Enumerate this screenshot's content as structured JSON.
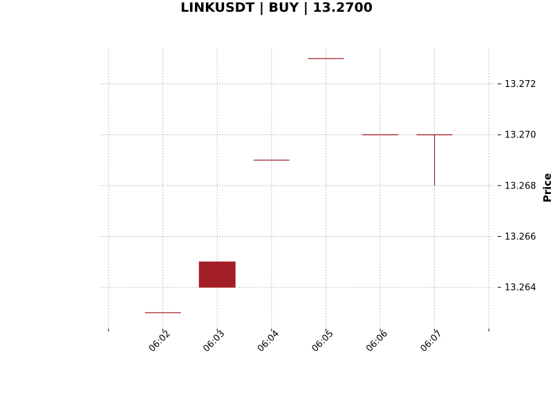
{
  "chart_data": {
    "type": "candlestick",
    "title": "LINKUSDT | BUY | 13.2700",
    "xlabel": "",
    "ylabel": "Price",
    "x_tick_labels": [
      "06:02",
      "06:03",
      "06:04",
      "06:05",
      "06:06",
      "06:07"
    ],
    "y_tick_labels": [
      "13.264",
      "13.266",
      "13.268",
      "13.270",
      "13.272"
    ],
    "y_ticks": [
      13.264,
      13.266,
      13.268,
      13.27,
      13.272
    ],
    "ylim": [
      13.2624,
      13.2734
    ],
    "grid": true,
    "colors": {
      "down": "#a31f28"
    },
    "candles": [
      {
        "time": "06:02",
        "open": 13.263,
        "high": 13.263,
        "low": 13.263,
        "close": 13.263
      },
      {
        "time": "06:03",
        "open": 13.265,
        "high": 13.265,
        "low": 13.264,
        "close": 13.264
      },
      {
        "time": "06:04",
        "open": 13.269,
        "high": 13.269,
        "low": 13.269,
        "close": 13.269
      },
      {
        "time": "06:05",
        "open": 13.273,
        "high": 13.273,
        "low": 13.273,
        "close": 13.273
      },
      {
        "time": "06:06",
        "open": 13.27,
        "high": 13.27,
        "low": 13.27,
        "close": 13.27
      },
      {
        "time": "06:07",
        "open": 13.27,
        "high": 13.27,
        "low": 13.268,
        "close": 13.27
      }
    ]
  }
}
